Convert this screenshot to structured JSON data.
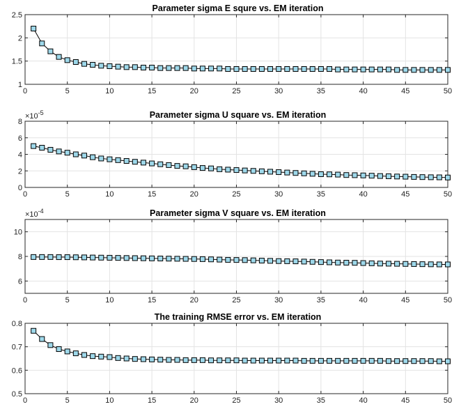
{
  "chart_data": [
    {
      "type": "line",
      "title": "Parameter sigma E squre  vs. EM iteration",
      "xlabel": "",
      "ylabel": "",
      "xlim": [
        0,
        50
      ],
      "ylim": [
        1,
        2.5
      ],
      "xticks": [
        0,
        5,
        10,
        15,
        20,
        25,
        30,
        35,
        40,
        45,
        50
      ],
      "yticks": [
        1,
        1.5,
        2,
        2.5
      ],
      "ytick_labels": [
        "1",
        "1.5",
        "2",
        "2.5"
      ],
      "exponent": null,
      "grid": true,
      "marker": "square",
      "marker_color": "#9ed8ea",
      "series": [
        {
          "x": [
            1,
            2,
            3,
            4,
            5,
            6,
            7,
            8,
            9,
            10,
            11,
            12,
            13,
            14,
            15,
            16,
            17,
            18,
            19,
            20,
            21,
            22,
            23,
            24,
            25,
            26,
            27,
            28,
            29,
            30,
            31,
            32,
            33,
            34,
            35,
            36,
            37,
            38,
            39,
            40,
            41,
            42,
            43,
            44,
            45,
            46,
            47,
            48,
            49,
            50
          ],
          "y": [
            2.2,
            1.88,
            1.71,
            1.59,
            1.52,
            1.48,
            1.44,
            1.42,
            1.4,
            1.39,
            1.38,
            1.37,
            1.37,
            1.36,
            1.36,
            1.35,
            1.35,
            1.35,
            1.35,
            1.34,
            1.34,
            1.34,
            1.34,
            1.33,
            1.33,
            1.33,
            1.33,
            1.33,
            1.33,
            1.33,
            1.33,
            1.33,
            1.33,
            1.33,
            1.33,
            1.33,
            1.32,
            1.32,
            1.32,
            1.32,
            1.32,
            1.32,
            1.32,
            1.31,
            1.31,
            1.31,
            1.31,
            1.31,
            1.31,
            1.31
          ]
        }
      ]
    },
    {
      "type": "line",
      "title": "Parameter sigma U square vs. EM iteration",
      "xlabel": "",
      "ylabel": "",
      "xlim": [
        0,
        50
      ],
      "ylim": [
        0,
        8
      ],
      "xticks": [
        0,
        5,
        10,
        15,
        20,
        25,
        30,
        35,
        40,
        45,
        50
      ],
      "yticks": [
        0,
        2,
        4,
        6,
        8
      ],
      "ytick_labels": [
        "0",
        "2",
        "4",
        "6",
        "8"
      ],
      "exponent": "-5",
      "grid": true,
      "marker": "square",
      "marker_color": "#9ed8ea",
      "series": [
        {
          "x": [
            1,
            2,
            3,
            4,
            5,
            6,
            7,
            8,
            9,
            10,
            11,
            12,
            13,
            14,
            15,
            16,
            17,
            18,
            19,
            20,
            21,
            22,
            23,
            24,
            25,
            26,
            27,
            28,
            29,
            30,
            31,
            32,
            33,
            34,
            35,
            36,
            37,
            38,
            39,
            40,
            41,
            42,
            43,
            44,
            45,
            46,
            47,
            48,
            49,
            50
          ],
          "y": [
            5.0,
            4.8,
            4.55,
            4.35,
            4.2,
            4.0,
            3.85,
            3.65,
            3.5,
            3.4,
            3.3,
            3.2,
            3.1,
            3.0,
            2.9,
            2.8,
            2.7,
            2.6,
            2.55,
            2.45,
            2.35,
            2.3,
            2.2,
            2.15,
            2.1,
            2.05,
            2.0,
            1.95,
            1.9,
            1.85,
            1.8,
            1.75,
            1.7,
            1.65,
            1.6,
            1.58,
            1.55,
            1.5,
            1.48,
            1.45,
            1.42,
            1.38,
            1.35,
            1.32,
            1.3,
            1.27,
            1.25,
            1.23,
            1.22,
            1.2
          ]
        }
      ]
    },
    {
      "type": "line",
      "title": "Parameter sigma V square vs. EM iteration",
      "xlabel": "",
      "ylabel": "",
      "xlim": [
        0,
        50
      ],
      "ylim": [
        5,
        11
      ],
      "xticks": [
        0,
        5,
        10,
        15,
        20,
        25,
        30,
        35,
        40,
        45,
        50
      ],
      "yticks": [
        6,
        8,
        10
      ],
      "ytick_labels": [
        "6",
        "8",
        "10"
      ],
      "exponent": "-4",
      "grid": true,
      "marker": "square",
      "marker_color": "#9ed8ea",
      "series": [
        {
          "x": [
            1,
            2,
            3,
            4,
            5,
            6,
            7,
            8,
            9,
            10,
            11,
            12,
            13,
            14,
            15,
            16,
            17,
            18,
            19,
            20,
            21,
            22,
            23,
            24,
            25,
            26,
            27,
            28,
            29,
            30,
            31,
            32,
            33,
            34,
            35,
            36,
            37,
            38,
            39,
            40,
            41,
            42,
            43,
            44,
            45,
            46,
            47,
            48,
            49,
            50
          ],
          "y": [
            7.95,
            7.95,
            7.95,
            7.94,
            7.94,
            7.93,
            7.92,
            7.91,
            7.9,
            7.89,
            7.88,
            7.87,
            7.86,
            7.85,
            7.84,
            7.83,
            7.82,
            7.81,
            7.8,
            7.79,
            7.78,
            7.76,
            7.74,
            7.72,
            7.71,
            7.7,
            7.68,
            7.66,
            7.64,
            7.62,
            7.61,
            7.6,
            7.58,
            7.56,
            7.54,
            7.52,
            7.5,
            7.49,
            7.48,
            7.46,
            7.44,
            7.42,
            7.41,
            7.4,
            7.39,
            7.38,
            7.37,
            7.36,
            7.35,
            7.35
          ]
        }
      ]
    },
    {
      "type": "line",
      "title": "The training RMSE error vs. EM iteration",
      "xlabel": "",
      "ylabel": "",
      "xlim": [
        0,
        50
      ],
      "ylim": [
        0.5,
        0.8
      ],
      "xticks": [
        0,
        5,
        10,
        15,
        20,
        25,
        30,
        35,
        40,
        45,
        50
      ],
      "yticks": [
        0.5,
        0.6,
        0.7,
        0.8
      ],
      "ytick_labels": [
        "0.5",
        "0.6",
        "0.7",
        "0.8"
      ],
      "exponent": null,
      "grid": true,
      "marker": "square",
      "marker_color": "#9ed8ea",
      "series": [
        {
          "x": [
            1,
            2,
            3,
            4,
            5,
            6,
            7,
            8,
            9,
            10,
            11,
            12,
            13,
            14,
            15,
            16,
            17,
            18,
            19,
            20,
            21,
            22,
            23,
            24,
            25,
            26,
            27,
            28,
            29,
            30,
            31,
            32,
            33,
            34,
            35,
            36,
            37,
            38,
            39,
            40,
            41,
            42,
            43,
            44,
            45,
            46,
            47,
            48,
            49,
            50
          ],
          "y": [
            0.768,
            0.733,
            0.707,
            0.69,
            0.68,
            0.672,
            0.665,
            0.66,
            0.658,
            0.656,
            0.652,
            0.65,
            0.648,
            0.647,
            0.646,
            0.645,
            0.644,
            0.644,
            0.643,
            0.643,
            0.643,
            0.642,
            0.642,
            0.642,
            0.642,
            0.641,
            0.641,
            0.641,
            0.641,
            0.641,
            0.641,
            0.641,
            0.64,
            0.64,
            0.64,
            0.64,
            0.64,
            0.64,
            0.64,
            0.64,
            0.64,
            0.64,
            0.639,
            0.639,
            0.639,
            0.639,
            0.639,
            0.639,
            0.638,
            0.638
          ]
        }
      ]
    }
  ]
}
